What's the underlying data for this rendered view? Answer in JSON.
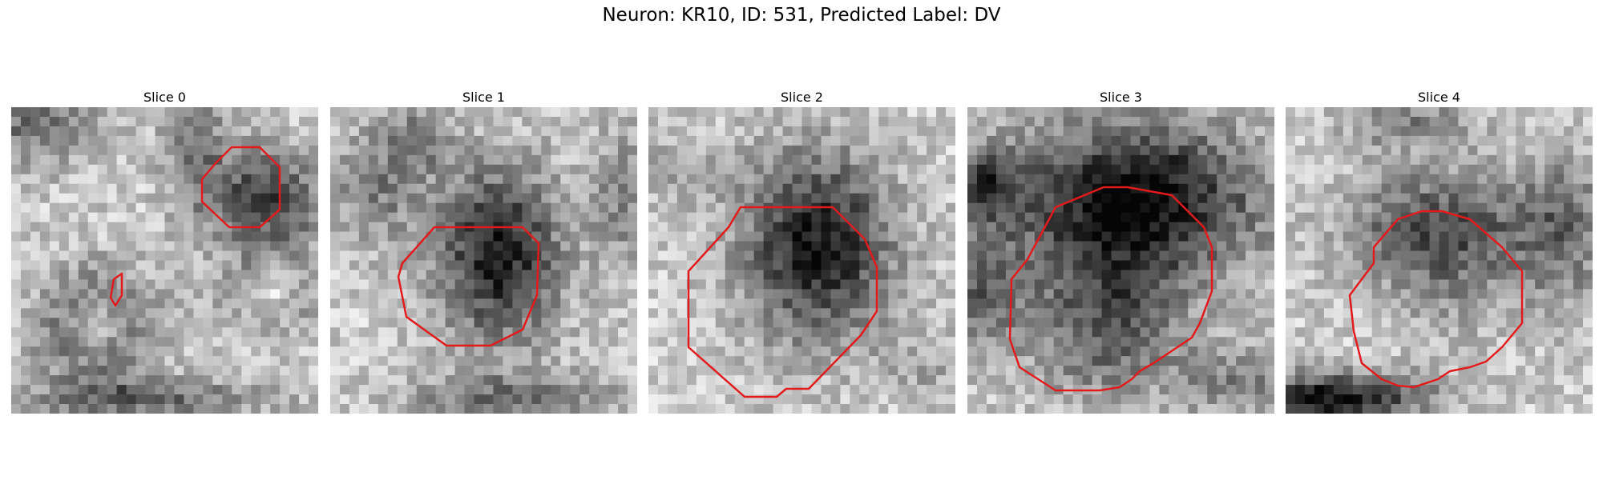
{
  "figure": {
    "title": "Neuron: KR10, ID: 531, Predicted Label: DV"
  },
  "slices": [
    {
      "label": "Slice 0",
      "roi_color": "#e31a1c",
      "seed": 11,
      "blobs": [
        [
          0.82,
          0.3,
          0.2,
          0.16,
          0.55
        ],
        [
          0.28,
          0.72,
          0.18,
          0.18,
          0.62
        ],
        [
          0.28,
          0.72,
          0.1,
          0.1,
          -0.55
        ],
        [
          0.05,
          0.05,
          0.25,
          0.15,
          0.35
        ],
        [
          0.6,
          0.1,
          0.1,
          0.2,
          0.3
        ],
        [
          0.45,
          0.95,
          0.4,
          0.06,
          0.4
        ],
        [
          0.85,
          0.6,
          0.18,
          0.14,
          0.3
        ],
        [
          0.85,
          0.6,
          0.08,
          0.08,
          -0.35
        ]
      ]
    },
    {
      "label": "Slice 1",
      "roi_color": "#e31a1c",
      "seed": 23,
      "blobs": [
        [
          0.55,
          0.48,
          0.2,
          0.28,
          0.7
        ],
        [
          0.15,
          0.25,
          0.15,
          0.2,
          0.3
        ],
        [
          0.3,
          0.1,
          0.1,
          0.1,
          0.3
        ],
        [
          0.6,
          0.95,
          0.35,
          0.08,
          0.35
        ],
        [
          0.95,
          0.3,
          0.1,
          0.25,
          0.25
        ]
      ]
    },
    {
      "label": "Slice 2",
      "roi_color": "#e31a1c",
      "seed": 37,
      "blobs": [
        [
          0.55,
          0.45,
          0.24,
          0.3,
          0.72
        ],
        [
          0.1,
          0.2,
          0.15,
          0.12,
          0.15
        ],
        [
          0.9,
          0.85,
          0.15,
          0.1,
          0.15
        ]
      ]
    },
    {
      "label": "Slice 3",
      "roi_color": "#e31a1c",
      "seed": 49,
      "blobs": [
        [
          0.55,
          0.3,
          0.4,
          0.25,
          0.8
        ],
        [
          0.45,
          0.7,
          0.25,
          0.25,
          0.45
        ],
        [
          0.05,
          0.25,
          0.12,
          0.12,
          0.45
        ],
        [
          0.05,
          0.6,
          0.12,
          0.2,
          0.4
        ],
        [
          0.9,
          0.9,
          0.2,
          0.12,
          0.3
        ]
      ]
    },
    {
      "label": "Slice 4",
      "roi_color": "#e31a1c",
      "seed": 61,
      "blobs": [
        [
          0.5,
          0.4,
          0.3,
          0.2,
          0.5
        ],
        [
          0.55,
          0.65,
          0.18,
          0.18,
          0.1
        ],
        [
          0.15,
          0.95,
          0.3,
          0.08,
          0.75
        ],
        [
          0.9,
          0.4,
          0.15,
          0.25,
          0.35
        ],
        [
          0.4,
          0.05,
          0.2,
          0.08,
          0.3
        ]
      ]
    }
  ]
}
